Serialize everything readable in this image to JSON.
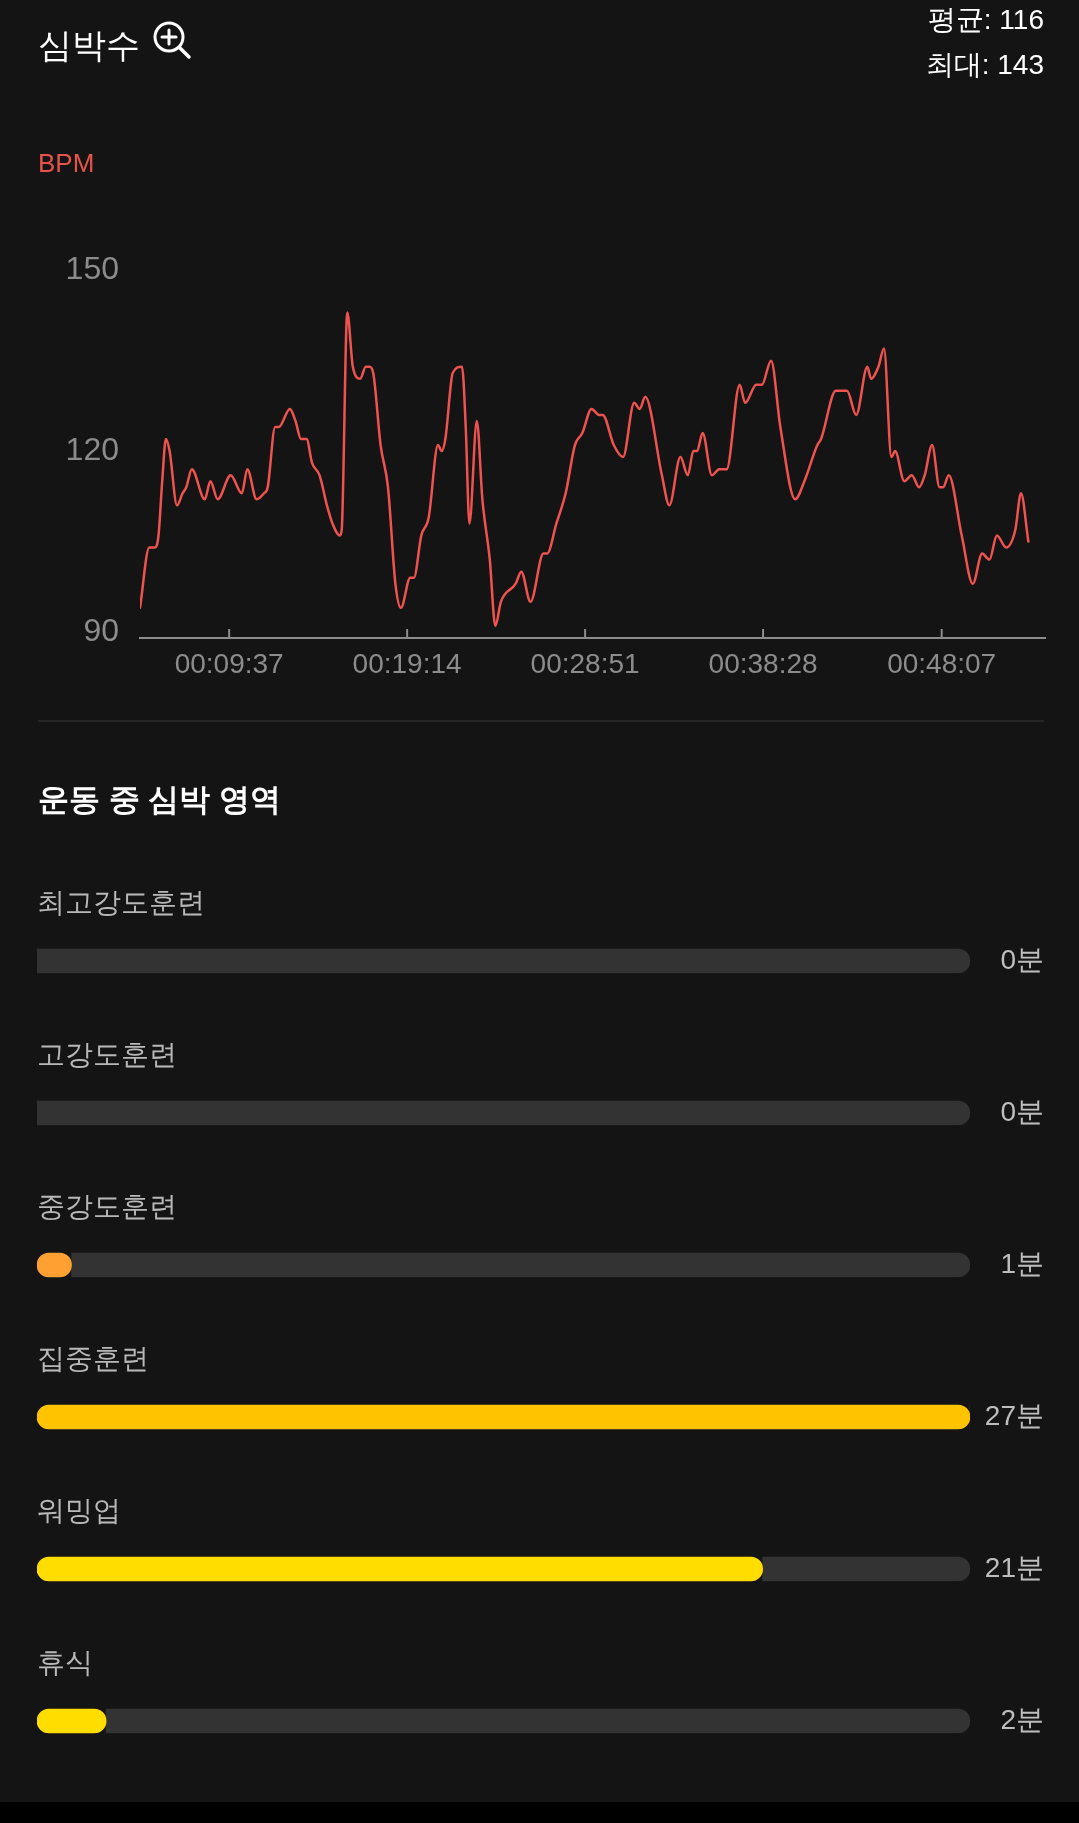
{
  "chart_data": [
    {
      "type": "line",
      "title": "심박수",
      "ylabel": "BPM",
      "annotations": [
        "평균: 116",
        "최대: 143"
      ],
      "x": [
        4.8,
        5.3,
        5.6,
        5.8,
        6.0,
        6.2,
        6.4,
        6.8,
        7.1,
        7.3,
        7.6,
        8.3,
        8.6,
        9.0,
        9.7,
        10.3,
        10.6,
        11.1,
        11.5,
        11.7,
        12.1,
        12.3,
        12.9,
        13.2,
        13.5,
        13.8,
        14.1,
        14.5,
        14.9,
        15.2,
        15.6,
        15.7,
        16.0,
        16.3,
        16.7,
        17.0,
        17.2,
        17.4,
        17.8,
        18.2,
        18.6,
        18.9,
        19.4,
        19.6,
        20.0,
        20.4,
        20.9,
        21.1,
        21.3,
        21.7,
        22.2,
        22.4,
        22.6,
        23.0,
        23.3,
        23.7,
        24.0,
        24.3,
        25.1,
        25.4,
        25.9,
        26.6,
        26.8,
        27.3,
        27.8,
        28.3,
        28.7,
        29.2,
        29.6,
        29.8,
        30.4,
        30.9,
        31.5,
        31.8,
        32.1,
        33.0,
        33.4,
        34.0,
        34.4,
        34.7,
        34.9,
        35.2,
        35.7,
        36.1,
        36.5,
        37.2,
        37.5,
        38.1,
        38.4,
        38.9,
        39.4,
        40.2,
        40.7,
        41.4,
        41.6,
        42.4,
        42.7,
        43.0,
        43.5,
        44.1,
        44.3,
        44.7,
        45.0,
        45.4,
        45.6,
        46.1,
        46.5,
        46.9,
        47.2,
        47.6,
        48.0,
        48.2,
        48.5,
        49.2,
        49.8,
        50.3,
        50.7,
        51.1,
        51.6,
        52.1,
        52.4,
        52.8
      ],
      "series": [
        {
          "color": "#ef5350",
          "values": [
            94,
            104,
            104,
            106,
            115,
            122,
            120,
            111,
            113,
            114,
            117,
            112,
            115,
            112,
            116,
            113,
            117,
            112,
            113,
            114,
            124,
            124,
            127,
            125,
            122,
            122,
            118,
            116,
            111,
            108,
            106,
            107,
            143,
            134,
            132,
            134,
            134,
            133,
            121,
            114,
            98,
            94,
            99,
            99,
            106,
            109,
            121,
            120,
            122,
            133,
            134,
            124,
            108,
            125,
            112,
            102,
            91,
            95,
            98,
            100,
            95,
            103,
            103,
            108,
            113,
            121,
            123,
            127,
            126,
            126,
            121,
            119,
            128,
            127,
            129,
            116,
            111,
            119,
            116,
            120,
            120,
            123,
            116,
            117,
            117,
            131,
            128,
            131,
            131,
            135,
            124,
            112,
            115,
            121,
            122,
            130,
            130,
            130,
            126,
            134,
            132,
            134,
            137,
            119,
            120,
            115,
            116,
            114,
            116,
            121,
            114,
            114,
            116,
            106,
            98,
            103,
            102,
            106,
            104,
            107,
            113,
            105
          ]
        }
      ],
      "xlim": [
        4.8,
        53.7
      ],
      "xticks": [
        {
          "value": 9.617,
          "label": "00:09:37"
        },
        {
          "value": 19.233,
          "label": "00:19:14"
        },
        {
          "value": 28.85,
          "label": "00:28:51"
        },
        {
          "value": 38.467,
          "label": "00:38:28"
        },
        {
          "value": 48.117,
          "label": "00:48:07"
        }
      ],
      "ylim": [
        89,
        150
      ],
      "yticks": [
        90,
        120,
        150
      ],
      "marker": "none",
      "line_style": "solid",
      "legend": false
    },
    {
      "type": "bar",
      "orientation": "horizontal",
      "stacked": true,
      "title": "운동 중 심박 영역",
      "categories": [
        "최고강도훈련",
        "고강도훈련",
        "중강도훈련",
        "집중훈련",
        "워밍업",
        "휴식"
      ],
      "series": [
        {
          "colors": [
            null,
            null,
            "#ffa033",
            "#ffc300",
            "#ffdd00",
            "#ffdd00"
          ],
          "values": [
            0,
            0,
            1,
            27,
            21,
            2
          ],
          "value_labels": [
            "0분",
            "0분",
            "1분",
            "27분",
            "21분",
            "2분"
          ]
        },
        {
          "color": "#333333",
          "values": [
            27,
            27,
            26,
            0,
            6,
            25
          ]
        }
      ],
      "xlim": [
        0,
        27
      ],
      "tick_labels": "y",
      "legend": false
    }
  ]
}
